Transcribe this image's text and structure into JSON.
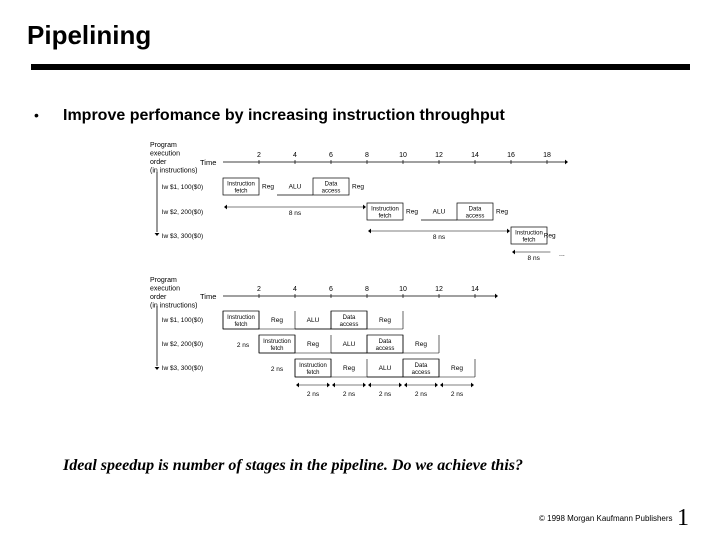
{
  "slide": {
    "title": "Pipelining",
    "bullet_symbol": "•",
    "bullet_text": "Improve perfomance by increasing instruction throughput",
    "caption": "Ideal speedup is number of stages in the pipeline.  Do we achieve this?",
    "copyright": "© 1998 Morgan Kaufmann Publishers",
    "page_number": "1"
  },
  "diagram_top": {
    "axis_header": [
      "Program",
      "execution",
      "order",
      "(in instructions)"
    ],
    "time_label": "Time",
    "ticks": [
      "2",
      "4",
      "6",
      "8",
      "10",
      "12",
      "14",
      "16",
      "18"
    ],
    "instructions": [
      "lw $1, 100($0)",
      "lw $2, 200($0)",
      "lw $3, 300($0)"
    ],
    "stage_labels": {
      "instruction_fetch": [
        "Instruction",
        "fetch"
      ],
      "reg": "Reg",
      "alu": "ALU",
      "data_access": [
        "Data",
        "access"
      ]
    },
    "interval_label": "8 ns",
    "ellipsis": "..."
  },
  "diagram_bottom": {
    "axis_header": [
      "Program",
      "execution",
      "order",
      "(in instructions)"
    ],
    "time_label": "Time",
    "ticks": [
      "2",
      "4",
      "6",
      "8",
      "10",
      "12",
      "14"
    ],
    "instructions": [
      "lw $1, 100($0)",
      "lw $2, 200($0)",
      "lw $3, 300($0)"
    ],
    "stage_labels": {
      "instruction_fetch": [
        "Instruction",
        "fetch"
      ],
      "reg": "Reg",
      "alu": "ALU",
      "data_access": [
        "Data",
        "access"
      ]
    },
    "stage_interval_label": "2 ns"
  }
}
